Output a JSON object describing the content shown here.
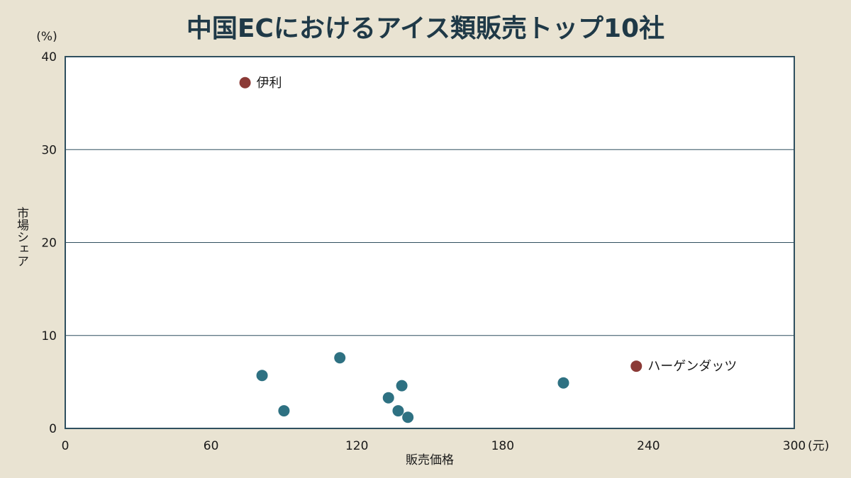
{
  "chart_data": {
    "type": "scatter",
    "title": "中国ECにおけるアイス類販売トップ10社",
    "xlabel": "販売価格",
    "xunit": "(元)",
    "ylabel": "市場シェア",
    "yunit": "(%)",
    "xlim": [
      0,
      300
    ],
    "ylim": [
      0,
      40
    ],
    "xticks": [
      "0",
      "60",
      "120",
      "180",
      "240",
      "300"
    ],
    "yticks": [
      "0",
      "10",
      "20",
      "30",
      "40"
    ],
    "grid": "horizontal",
    "colors": {
      "default": "#2e7182",
      "highlight": "#8b3a36",
      "background": "#e9e3d2",
      "plot_background": "#ffffff",
      "title": "#1f3947"
    },
    "points": [
      {
        "x": 74,
        "y": 37.2,
        "label": "伊利",
        "highlight": true
      },
      {
        "x": 81,
        "y": 5.7
      },
      {
        "x": 90,
        "y": 1.9
      },
      {
        "x": 113,
        "y": 7.6
      },
      {
        "x": 133,
        "y": 3.3
      },
      {
        "x": 137,
        "y": 1.9
      },
      {
        "x": 138.5,
        "y": 4.6
      },
      {
        "x": 141,
        "y": 1.2
      },
      {
        "x": 205,
        "y": 4.9
      },
      {
        "x": 235,
        "y": 6.7,
        "label": "ハーゲンダッツ",
        "highlight": true
      }
    ]
  }
}
